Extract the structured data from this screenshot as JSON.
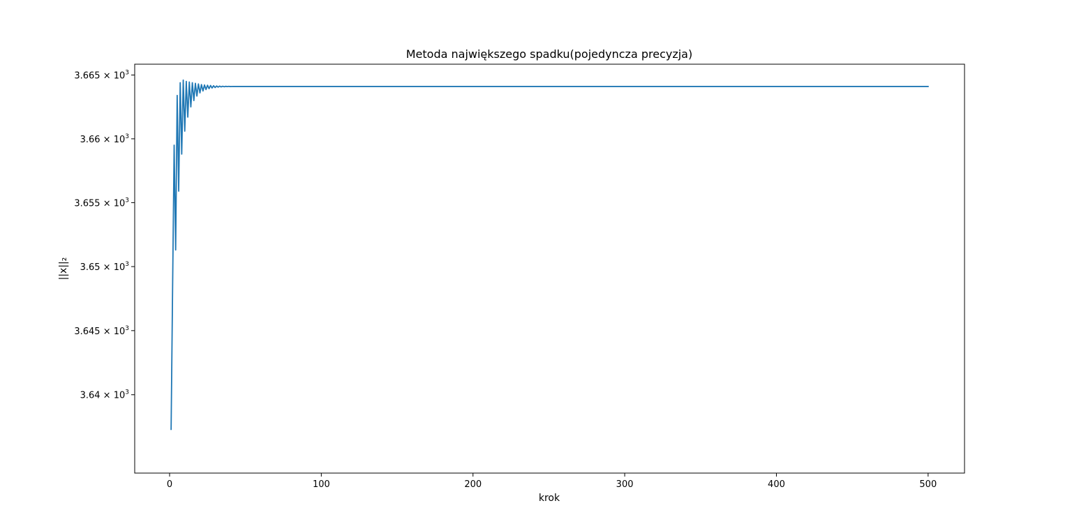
{
  "chart_data": {
    "type": "line",
    "title": "Metoda największego spadku(pojedyncza precyzja)",
    "xlabel": "krok",
    "ylabel": "||x||₂",
    "y_scale": "log",
    "xlim": [
      -23.0,
      524.0
    ],
    "ylim": [
      3633.9,
      3665.85
    ],
    "x_ticks": [
      0,
      100,
      200,
      300,
      400,
      500
    ],
    "x_tick_labels": [
      "0",
      "100",
      "200",
      "300",
      "400",
      "500"
    ],
    "y_ticks": [
      {
        "value": 3640,
        "mantissa": "3.64"
      },
      {
        "value": 3645,
        "mantissa": "3.645"
      },
      {
        "value": 3650,
        "mantissa": "3.65"
      },
      {
        "value": 3655,
        "mantissa": "3.655"
      },
      {
        "value": 3660,
        "mantissa": "3.66"
      },
      {
        "value": 3665,
        "mantissa": "3.665"
      }
    ],
    "y_tick_suffix": "× 10",
    "y_tick_exponent": "3",
    "grid": false,
    "line_color": "#1f77b4",
    "series": [
      {
        "points": [
          [
            1,
            3637.3
          ],
          [
            2,
            3648.5
          ],
          [
            3,
            3659.5
          ],
          [
            4,
            3651.3
          ],
          [
            5,
            3663.4
          ],
          [
            6,
            3655.9
          ],
          [
            7,
            3664.4
          ],
          [
            8,
            3658.8
          ],
          [
            9,
            3664.6
          ],
          [
            10,
            3660.6
          ],
          [
            11,
            3664.5
          ],
          [
            12,
            3661.7
          ],
          [
            13,
            3664.45
          ],
          [
            14,
            3662.5
          ],
          [
            15,
            3664.4
          ],
          [
            16,
            3663.0
          ],
          [
            17,
            3664.35
          ],
          [
            18,
            3663.35
          ],
          [
            19,
            3664.3
          ],
          [
            20,
            3663.6
          ],
          [
            21,
            3664.25
          ],
          [
            22,
            3663.75
          ],
          [
            23,
            3664.22
          ],
          [
            24,
            3663.86
          ],
          [
            25,
            3664.2
          ],
          [
            26,
            3663.93
          ],
          [
            27,
            3664.18
          ],
          [
            28,
            3663.98
          ],
          [
            29,
            3664.16
          ],
          [
            30,
            3664.02
          ],
          [
            31,
            3664.14
          ],
          [
            32,
            3664.05
          ],
          [
            33,
            3664.13
          ],
          [
            34,
            3664.07
          ],
          [
            35,
            3664.12
          ],
          [
            36,
            3664.08
          ],
          [
            37,
            3664.115
          ],
          [
            38,
            3664.09
          ],
          [
            39,
            3664.11
          ],
          [
            40,
            3664.095
          ],
          [
            42,
            3664.105
          ],
          [
            44,
            3664.1
          ],
          [
            46,
            3664.1
          ],
          [
            50,
            3664.1
          ],
          [
            100,
            3664.1
          ],
          [
            200,
            3664.1
          ],
          [
            300,
            3664.1
          ],
          [
            400,
            3664.1
          ],
          [
            500,
            3664.1
          ]
        ]
      }
    ]
  }
}
